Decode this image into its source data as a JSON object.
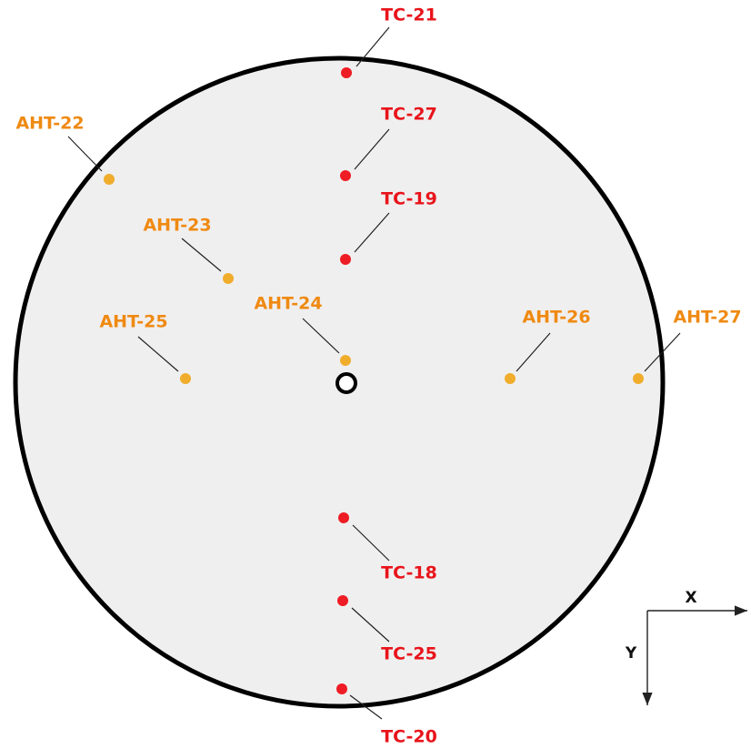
{
  "points": [
    {
      "label": "TC-21"
    },
    {
      "label": "TC-27"
    },
    {
      "label": "TC-19"
    },
    {
      "label": "AHT-22"
    },
    {
      "label": "AHT-23"
    },
    {
      "label": "AHT-24"
    },
    {
      "label": "AHT-25"
    },
    {
      "label": "AHT-26"
    },
    {
      "label": "AHT-27"
    },
    {
      "label": "TC-18"
    },
    {
      "label": "TC-25"
    },
    {
      "label": "TC-20"
    }
  ],
  "axes": {
    "x": "X",
    "y": "Y"
  }
}
